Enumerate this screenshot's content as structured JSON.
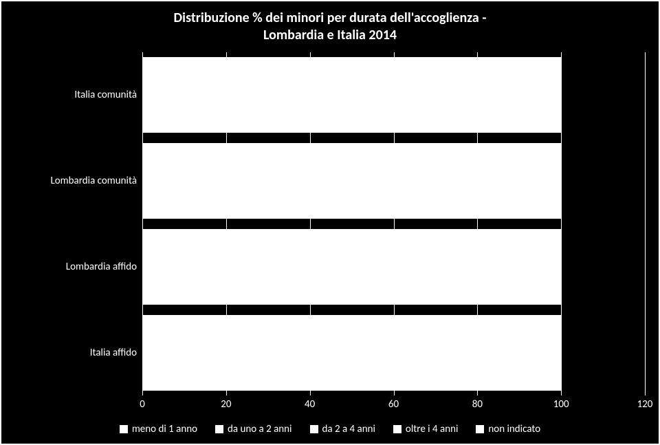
{
  "chart": {
    "type": "bar-horizontal-stacked",
    "title_line1": "Distribuzione % dei minori per durata dell'accoglienza -",
    "title_line2": "Lombardia e Italia 2014",
    "title_fontsize": 20,
    "label_fontsize": 15,
    "tick_fontsize": 15,
    "legend_fontsize": 15,
    "background_color": "#000000",
    "foreground_color": "#ffffff",
    "bar_color": "#ffffff",
    "grid_color": "#ffffff",
    "xlim_min": 0,
    "xlim_max": 120,
    "xtick_step": 20,
    "xticks": [
      0,
      20,
      40,
      60,
      80,
      100,
      120
    ],
    "categories": [
      "Italia comunità",
      "Lombardia comunità",
      "Lombardia affido",
      "Italia affido"
    ],
    "values": [
      100,
      100,
      100,
      100
    ],
    "bar_thickness_pct": 22,
    "legend_items": [
      "meno di 1 anno",
      "da uno a 2 anni",
      "da 2 a 4 anni",
      "oltre i 4 anni",
      "non indicato"
    ],
    "series_colors": [
      "#ffffff",
      "#ffffff",
      "#ffffff",
      "#ffffff",
      "#ffffff"
    ]
  }
}
